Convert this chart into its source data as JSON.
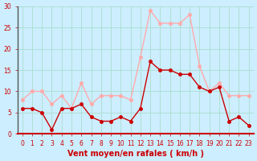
{
  "x": [
    0,
    1,
    2,
    3,
    4,
    5,
    6,
    7,
    8,
    9,
    10,
    11,
    12,
    13,
    14,
    15,
    16,
    17,
    18,
    19,
    20,
    21,
    22,
    23
  ],
  "wind_avg": [
    6,
    6,
    5,
    1,
    6,
    6,
    7,
    4,
    3,
    3,
    4,
    3,
    6,
    17,
    15,
    15,
    14,
    14,
    11,
    10,
    11,
    3,
    4,
    2
  ],
  "wind_gust": [
    8,
    10,
    10,
    7,
    9,
    6,
    12,
    7,
    9,
    9,
    9,
    8,
    18,
    29,
    26,
    26,
    26,
    28,
    16,
    10,
    12,
    9,
    9,
    9
  ],
  "line_color_avg": "#cc0000",
  "line_color_gust": "#ffaaaa",
  "marker_color_avg": "#cc0000",
  "marker_color_gust": "#ffaaaa",
  "bg_color": "#cceeff",
  "grid_color": "#aaddcc",
  "axis_label_color": "#cc0000",
  "tick_label_color": "#cc0000",
  "xlabel": "Vent moyen/en rafales ( km/h )",
  "ylim": [
    0,
    30
  ],
  "yticks": [
    0,
    5,
    10,
    15,
    20,
    25,
    30
  ],
  "title_fontsize": 7,
  "label_fontsize": 7
}
